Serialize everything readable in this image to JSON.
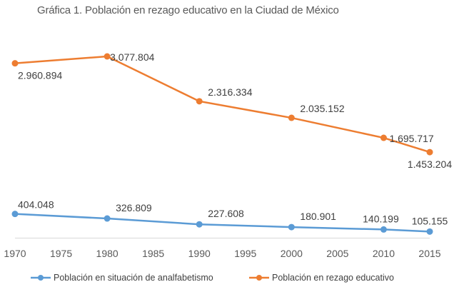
{
  "chart_data": {
    "type": "line",
    "title": "Gráfica 1. Población en rezago educativo en la Ciudad de México",
    "xlabel": "",
    "ylabel": "",
    "x_ticks": [
      "1970",
      "1975",
      "1980",
      "1985",
      "1990",
      "1995",
      "2000",
      "2005",
      "2010",
      "2015"
    ],
    "xlim": [
      1970,
      2015
    ],
    "ylim": [
      0,
      3077804
    ],
    "grid": false,
    "legend_position": "bottom",
    "series": [
      {
        "name": "Población en situación de analfabetismo",
        "color": "#5B9BD5",
        "x": [
          1970,
          1980,
          1990,
          2000,
          2010,
          2015
        ],
        "values": [
          404048,
          326809,
          227608,
          180901,
          140199,
          105155
        ],
        "labels": [
          "404.048",
          "326.809",
          "227.608",
          "180.901",
          "140.199",
          "105.155"
        ]
      },
      {
        "name": "Población en rezago educativo",
        "color": "#ED7D31",
        "x": [
          1970,
          1980,
          1990,
          2000,
          2010,
          2015
        ],
        "values": [
          2960894,
          3077804,
          2316334,
          2035152,
          1695717,
          1453204
        ],
        "labels": [
          "2.960.894",
          "3.077.804",
          "2.316.334",
          "2.035.152",
          "1.695.717",
          "1.453.204"
        ]
      }
    ]
  }
}
